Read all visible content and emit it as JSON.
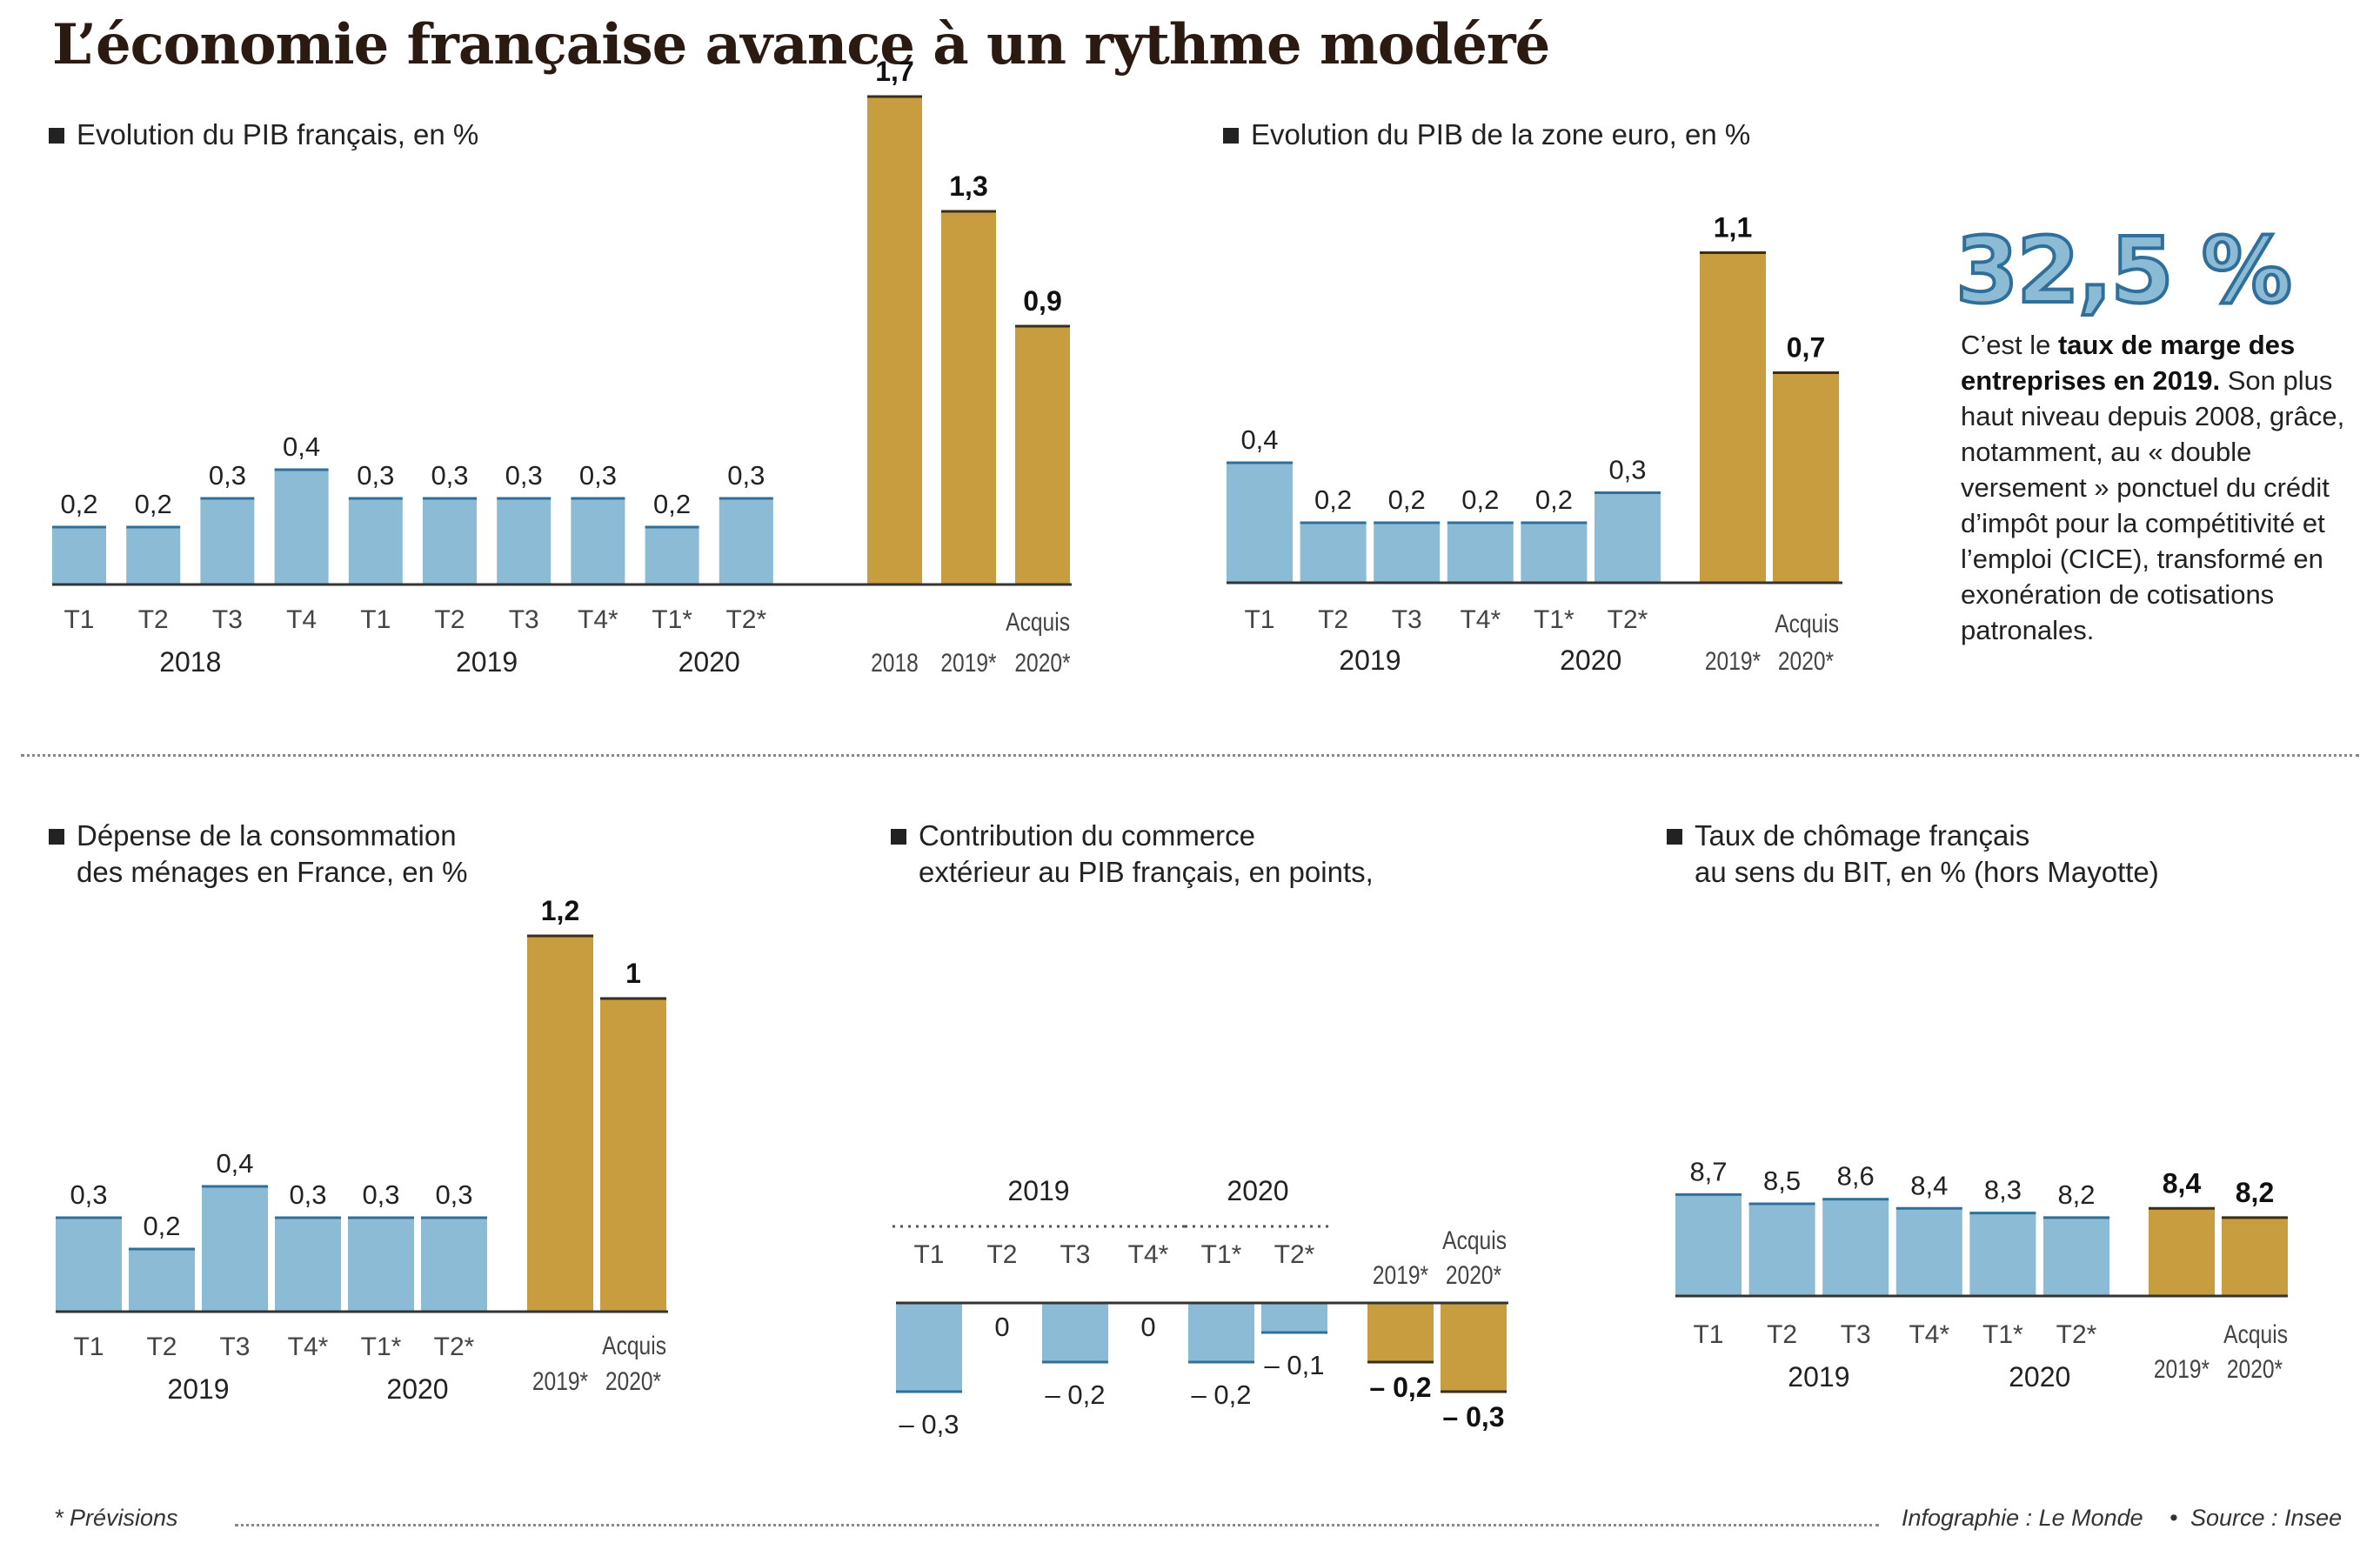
{
  "title": "L’économie française avance à un rythme modéré",
  "colors": {
    "quarter": "#8cbbd6",
    "quarter_edge": "#2f6f9a",
    "annual": "#c79d3f",
    "annual_edge": "#3a2e18"
  },
  "stat": {
    "value": "32,5 %",
    "pre": "C’est le ",
    "bold": "taux de marge des entreprises en 2019.",
    "text": " Son plus haut niveau depuis 2008, grâce, notamment, au « double versement » ponctuel du crédit d’impôt pour la compétitivité et l’emploi (CICE), transformé en exonération de cotisations patronales."
  },
  "footer": {
    "note": "* Prévisions",
    "credit": "Infographie : Le Monde",
    "source": "Source : Insee"
  },
  "chart_data": [
    {
      "type": "bar",
      "title": "Evolution du PIB français, en %",
      "title_lines": [
        "Evolution du PIB français, en %"
      ],
      "quarters": {
        "categories": [
          "T1",
          "T2",
          "T3",
          "T4",
          "T1",
          "T2",
          "T3",
          "T4*",
          "T1*",
          "T2*"
        ],
        "values": [
          0.2,
          0.2,
          0.3,
          0.4,
          0.3,
          0.3,
          0.3,
          0.3,
          0.2,
          0.3
        ],
        "labels": [
          "0,2",
          "0,2",
          "0,3",
          "0,4",
          "0,3",
          "0,3",
          "0,3",
          "0,3",
          "0,2",
          "0,3"
        ]
      },
      "years": [
        {
          "label": "2018",
          "from": 0,
          "to": 3
        },
        {
          "label": "2019",
          "from": 4,
          "to": 7
        },
        {
          "label": "2020",
          "from": 8,
          "to": 9
        }
      ],
      "annual": {
        "categories": [
          "2018",
          "2019*",
          "2020*"
        ],
        "values": [
          1.7,
          1.3,
          0.9
        ],
        "labels": [
          "1,7",
          "1,3",
          "0,9"
        ],
        "header": "Acquis"
      }
    },
    {
      "type": "bar",
      "title": "Evolution du PIB de la zone euro, en %",
      "title_lines": [
        "Evolution du PIB de la zone euro, en %"
      ],
      "quarters": {
        "categories": [
          "T1",
          "T2",
          "T3",
          "T4*",
          "T1*",
          "T2*"
        ],
        "values": [
          0.4,
          0.2,
          0.2,
          0.2,
          0.2,
          0.3
        ],
        "labels": [
          "0,4",
          "0,2",
          "0,2",
          "0,2",
          "0,2",
          "0,3"
        ]
      },
      "years": [
        {
          "label": "2019",
          "from": 0,
          "to": 3
        },
        {
          "label": "2020",
          "from": 4,
          "to": 5
        }
      ],
      "annual": {
        "categories": [
          "2019*",
          "2020*"
        ],
        "values": [
          1.1,
          0.7
        ],
        "labels": [
          "1,1",
          "0,7"
        ],
        "header": "Acquis"
      }
    },
    {
      "type": "bar",
      "title": "Dépense de la consommation des ménages en France, en %",
      "title_lines": [
        "Dépense de la consommation",
        "des ménages en France, en %"
      ],
      "quarters": {
        "categories": [
          "T1",
          "T2",
          "T3",
          "T4*",
          "T1*",
          "T2*"
        ],
        "values": [
          0.3,
          0.2,
          0.4,
          0.3,
          0.3,
          0.3
        ],
        "labels": [
          "0,3",
          "0,2",
          "0,4",
          "0,3",
          "0,3",
          "0,3"
        ]
      },
      "years": [
        {
          "label": "2019",
          "from": 0,
          "to": 3
        },
        {
          "label": "2020",
          "from": 4,
          "to": 5
        }
      ],
      "annual": {
        "categories": [
          "2019*",
          "2020*"
        ],
        "values": [
          1.2,
          1
        ],
        "labels": [
          "1,2",
          "1"
        ],
        "header": "Acquis"
      }
    },
    {
      "type": "bar",
      "title": "Contribution du commerce extérieur au PIB français, en points,",
      "title_lines": [
        "Contribution du commerce",
        "extérieur au PIB français, en points,"
      ],
      "quarters": {
        "categories": [
          "T1",
          "T2",
          "T3",
          "T4*",
          "T1*",
          "T2*"
        ],
        "values": [
          -0.3,
          0,
          -0.2,
          0,
          -0.2,
          -0.1
        ],
        "labels": [
          "– 0,3",
          "0",
          "– 0,2",
          "0",
          "– 0,2",
          "– 0,1"
        ]
      },
      "years": [
        {
          "label": "2019",
          "from": 0,
          "to": 3
        },
        {
          "label": "2020",
          "from": 4,
          "to": 5
        }
      ],
      "annual": {
        "categories": [
          "2019*",
          "2020*"
        ],
        "values": [
          -0.2,
          -0.3
        ],
        "labels": [
          "– 0,2",
          "– 0,3"
        ],
        "header": "Acquis"
      }
    },
    {
      "type": "bar",
      "title": "Taux de chômage français au sens du BIT, en % (hors Mayotte)",
      "title_lines": [
        "Taux de chômage français",
        "au sens du BIT, en % (hors Mayotte)"
      ],
      "quarters": {
        "categories": [
          "T1",
          "T2",
          "T3",
          "T4*",
          "T1*",
          "T2*"
        ],
        "values": [
          8.7,
          8.5,
          8.6,
          8.4,
          8.3,
          8.2
        ],
        "labels": [
          "8,7",
          "8,5",
          "8,6",
          "8,4",
          "8,3",
          "8,2"
        ]
      },
      "years": [
        {
          "label": "2019",
          "from": 0,
          "to": 3
        },
        {
          "label": "2020",
          "from": 4,
          "to": 5
        }
      ],
      "annual": {
        "categories": [
          "2019*",
          "2020*"
        ],
        "values": [
          8.4,
          8.2
        ],
        "labels": [
          "8,4",
          "8,2"
        ],
        "header": "Acquis"
      }
    }
  ]
}
